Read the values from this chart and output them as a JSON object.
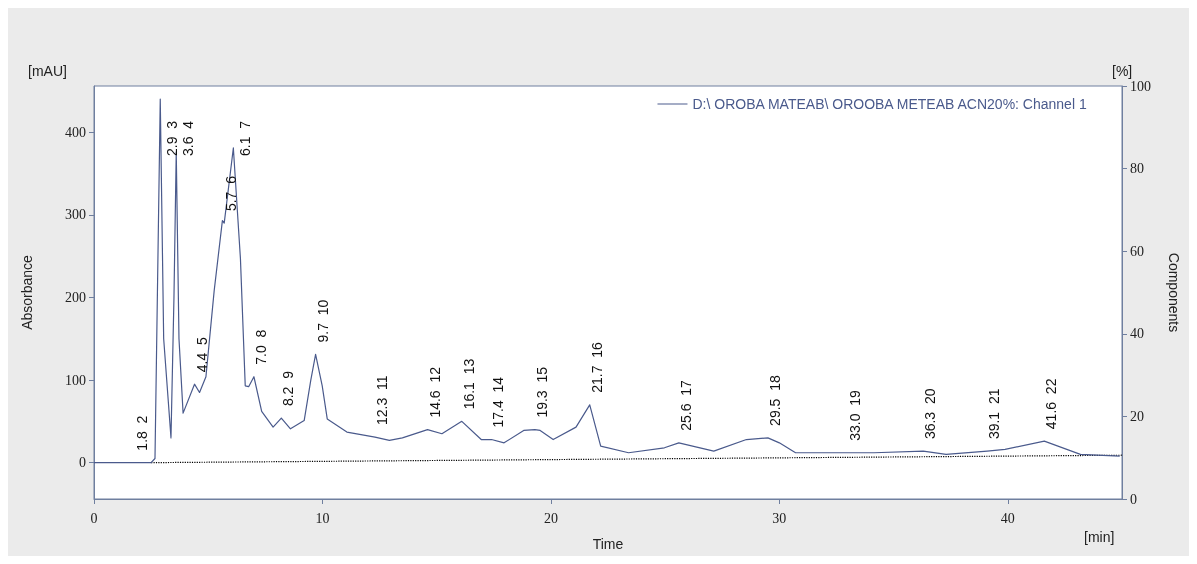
{
  "chart_data": {
    "type": "line",
    "xlabel": "Time",
    "ylabel": "Absorbance",
    "y2label": "Components",
    "xlim": [
      0,
      45
    ],
    "xticks": [
      0,
      10,
      20,
      30,
      40
    ],
    "ylim": [
      -44,
      456
    ],
    "yticks": [
      0,
      100,
      200,
      300,
      400
    ],
    "y2lim": [
      0,
      100
    ],
    "y2ticks": [
      0,
      20,
      40,
      60,
      80,
      100
    ],
    "grid": false,
    "legend": "top right",
    "marker": "none",
    "line_style": "solid",
    "series": [
      {
        "name": "D:\\ OROBA MATEAB\\ OROOBA METEAB ACN20%: Channel 1",
        "color": "#4a5a8c",
        "x": [
          0,
          1,
          1.8,
          2,
          2.5,
          2.67,
          2.9,
          3.05,
          3.37,
          3.5,
          3.6,
          3.72,
          3.9,
          4.4,
          4.62,
          4.9,
          5.26,
          5.62,
          5.7,
          6.1,
          6.41,
          6.62,
          6.77,
          7.0,
          7.34,
          7.84,
          8.2,
          8.6,
          9.2,
          9.49,
          9.7,
          9.99,
          10.21,
          11.07,
          12.3,
          12.93,
          13.5,
          14.6,
          15.23,
          16.1,
          16.95,
          17.4,
          17.95,
          18.81,
          19.3,
          19.53,
          20.1,
          21.1,
          21.7,
          22.18,
          23.4,
          24.97,
          25.6,
          27.13,
          28.56,
          29.5,
          30.0,
          30.71,
          33.0,
          34.15,
          36.3,
          37.3,
          39.1,
          39.88,
          41.6,
          43.18,
          44.9
        ],
        "values": [
          0,
          0,
          0,
          0,
          0,
          5,
          440,
          150,
          30,
          200,
          376,
          150,
          60,
          95,
          85,
          104,
          208,
          293,
          290,
          381,
          247,
          93,
          92,
          104,
          62,
          43,
          54,
          41,
          51,
          100,
          131,
          93,
          53,
          37,
          31,
          27,
          30,
          40,
          35,
          50,
          28,
          28,
          24,
          39,
          40,
          39,
          28,
          43,
          70,
          20,
          12,
          18,
          24,
          14,
          28,
          30,
          24,
          12,
          12,
          12,
          14,
          10,
          14,
          16,
          26,
          10,
          8
        ]
      },
      {
        "color": "#000000",
        "line_style": "dotted",
        "x": [
          2.5,
          45
        ],
        "values": [
          0,
          9
        ]
      }
    ],
    "annotations": [
      {
        "text": "1.8  2",
        "x": 1.8,
        "y": 0
      },
      {
        "text": "2.9  3",
        "x": 2.9,
        "y": 440
      },
      {
        "text": "3.6  4",
        "x": 3.6,
        "y": 376
      },
      {
        "text": "4.4  5",
        "x": 4.4,
        "y": 95
      },
      {
        "text": "5.7  6",
        "x": 5.7,
        "y": 290
      },
      {
        "text": "6.1  7",
        "x": 6.1,
        "y": 381
      },
      {
        "text": "7.0  8",
        "x": 7.0,
        "y": 104
      },
      {
        "text": "8.2  9",
        "x": 8.2,
        "y": 54
      },
      {
        "text": "9.7  10",
        "x": 9.7,
        "y": 131
      },
      {
        "text": "12.3  11",
        "x": 12.3,
        "y": 31
      },
      {
        "text": "14.6  12",
        "x": 14.6,
        "y": 40
      },
      {
        "text": "16.1  13",
        "x": 16.1,
        "y": 50
      },
      {
        "text": "17.4  14",
        "x": 17.4,
        "y": 28
      },
      {
        "text": "19.3  15",
        "x": 19.3,
        "y": 40
      },
      {
        "text": "21.7  16",
        "x": 21.7,
        "y": 70
      },
      {
        "text": "25.6  17",
        "x": 25.6,
        "y": 24
      },
      {
        "text": "29.5  18",
        "x": 29.5,
        "y": 30
      },
      {
        "text": "33.0  19",
        "x": 33.0,
        "y": 12
      },
      {
        "text": "36.3  20",
        "x": 36.3,
        "y": 14
      },
      {
        "text": "39.1  21",
        "x": 39.1,
        "y": 14
      },
      {
        "text": "41.6  22",
        "x": 41.6,
        "y": 26
      },
      "[mAU]",
      "[%]",
      "[min]"
    ]
  }
}
